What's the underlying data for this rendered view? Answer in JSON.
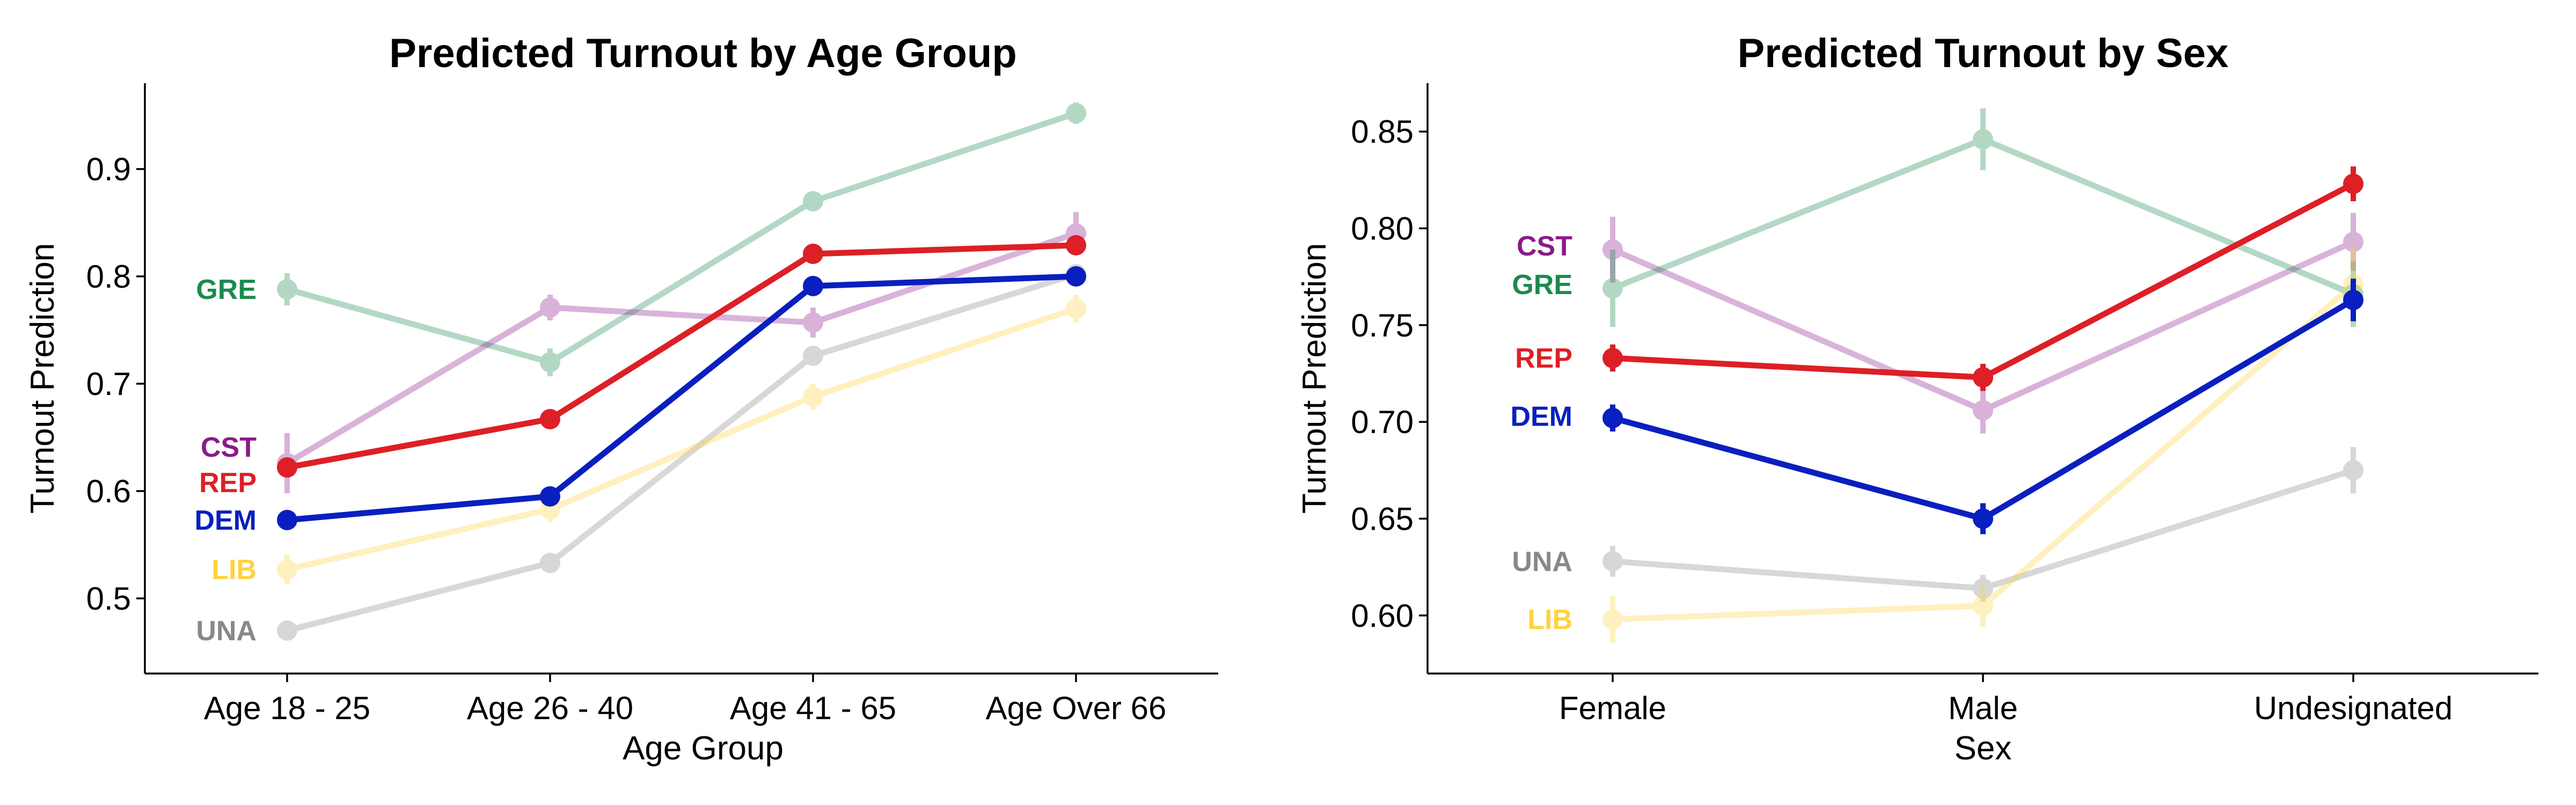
{
  "chart_data": [
    {
      "type": "line",
      "title": "Predicted Turnout by Age Group",
      "xlabel": "Age Group",
      "ylabel": "Turnout Prediction",
      "categories": [
        "Age 18 - 25",
        "Age 26 - 40",
        "Age 41 - 65",
        "Age Over 66"
      ],
      "ylim": [
        0.43,
        0.98
      ],
      "yticks": [
        0.5,
        0.6,
        0.7,
        0.8,
        0.9
      ],
      "ytick_labels": [
        "0.5",
        "0.6",
        "0.7",
        "0.8",
        "0.9"
      ],
      "grid": false,
      "series": [
        {
          "name": "GRE",
          "color": "#1a8a4e",
          "emphasis": false,
          "values": [
            0.788,
            0.72,
            0.87,
            0.952
          ],
          "err": [
            0.015,
            0.013,
            0.009,
            0.01
          ]
        },
        {
          "name": "CST",
          "color": "#8b1a8b",
          "emphasis": false,
          "values": [
            0.626,
            0.771,
            0.757,
            0.84
          ],
          "err": [
            0.028,
            0.012,
            0.014,
            0.02
          ]
        },
        {
          "name": "UNA",
          "color": "#888888",
          "emphasis": false,
          "values": [
            0.47,
            0.533,
            0.726,
            0.802
          ],
          "err": [
            0.007,
            0.006,
            0.008,
            0.009
          ]
        },
        {
          "name": "LIB",
          "color": "#ffd23f",
          "emphasis": false,
          "values": [
            0.527,
            0.583,
            0.688,
            0.77
          ],
          "err": [
            0.014,
            0.012,
            0.012,
            0.013
          ]
        },
        {
          "name": "REP",
          "color": "#dd1f26",
          "emphasis": true,
          "values": [
            0.622,
            0.667,
            0.821,
            0.829
          ],
          "err": [
            0.007,
            0.005,
            0.004,
            0.006
          ]
        },
        {
          "name": "DEM",
          "color": "#0a1fbf",
          "emphasis": true,
          "values": [
            0.573,
            0.595,
            0.791,
            0.8
          ],
          "err": [
            0.006,
            0.005,
            0.005,
            0.006
          ]
        }
      ]
    },
    {
      "type": "line",
      "title": "Predicted Turnout by Sex",
      "xlabel": "Sex",
      "ylabel": "Turnout Prediction",
      "categories": [
        "Female",
        "Male",
        "Undesignated"
      ],
      "ylim": [
        0.57,
        0.875
      ],
      "yticks": [
        0.6,
        0.65,
        0.7,
        0.75,
        0.8,
        0.85
      ],
      "ytick_labels": [
        "0.60",
        "0.65",
        "0.70",
        "0.75",
        "0.80",
        "0.85"
      ],
      "grid": false,
      "series": [
        {
          "name": "CST",
          "color": "#8b1a8b",
          "emphasis": false,
          "values": [
            0.789,
            0.706,
            0.793
          ],
          "err": [
            0.017,
            0.012,
            0.015
          ]
        },
        {
          "name": "GRE",
          "color": "#1a8a4e",
          "emphasis": false,
          "values": [
            0.769,
            0.846,
            0.766
          ],
          "err": [
            0.02,
            0.016,
            0.017
          ]
        },
        {
          "name": "UNA",
          "color": "#888888",
          "emphasis": false,
          "values": [
            0.628,
            0.614,
            0.675
          ],
          "err": [
            0.008,
            0.007,
            0.012
          ]
        },
        {
          "name": "LIB",
          "color": "#ffd23f",
          "emphasis": false,
          "values": [
            0.598,
            0.605,
            0.771
          ],
          "err": [
            0.012,
            0.011,
            0.02
          ]
        },
        {
          "name": "REP",
          "color": "#dd1f26",
          "emphasis": true,
          "values": [
            0.733,
            0.723,
            0.823
          ],
          "err": [
            0.007,
            0.007,
            0.009
          ]
        },
        {
          "name": "DEM",
          "color": "#0a1fbf",
          "emphasis": true,
          "values": [
            0.702,
            0.65,
            0.763
          ],
          "err": [
            0.007,
            0.008,
            0.011
          ]
        }
      ]
    }
  ]
}
